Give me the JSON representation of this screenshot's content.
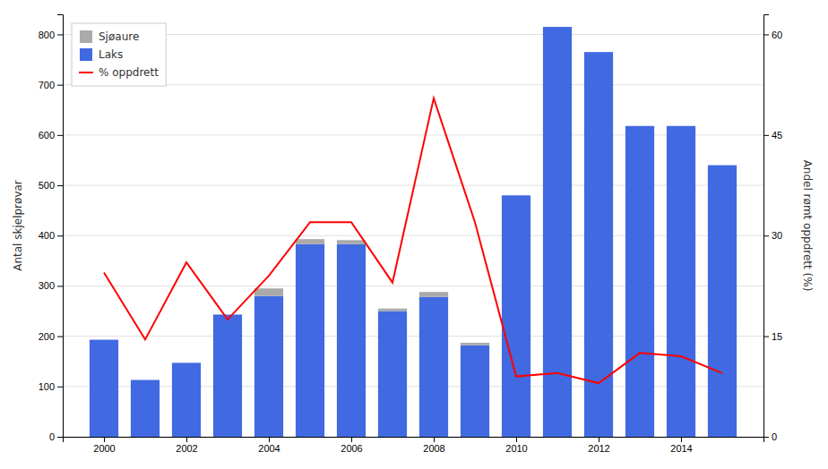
{
  "chart_data": {
    "type": "bar",
    "stacked": true,
    "x": [
      2000,
      2001,
      2002,
      2003,
      2004,
      2005,
      2006,
      2007,
      2008,
      2009,
      2010,
      2011,
      2012,
      2013,
      2014,
      2015
    ],
    "series": [
      {
        "name": "Laks",
        "color": "#4169E1",
        "values": [
          193,
          113,
          147,
          243,
          280,
          383,
          383,
          250,
          278,
          182,
          480,
          815,
          765,
          618,
          618,
          540
        ]
      },
      {
        "name": "Sjøaure",
        "color": "#AAAAAA",
        "values": [
          0,
          0,
          0,
          0,
          15,
          10,
          8,
          5,
          10,
          5,
          0,
          0,
          0,
          0,
          0,
          0
        ]
      },
      {
        "name": "% oppdrett",
        "type": "line",
        "axis": "y2",
        "color": "#FF0000",
        "values": [
          24.5,
          14.5,
          26.0,
          17.5,
          24.0,
          32.0,
          32.0,
          23.0,
          50.5,
          32.0,
          9.0,
          9.5,
          8.0,
          12.5,
          12.0,
          9.5
        ]
      }
    ],
    "ylabel": "Antal skjelprøvar",
    "y2label": "Andel rømt oppdrett (%)",
    "xlim": [
      1999.0,
      2016.0
    ],
    "xticks": [
      2000,
      2002,
      2004,
      2006,
      2008,
      2010,
      2012,
      2014
    ],
    "ylim": [
      0,
      840
    ],
    "yticks": [
      0,
      100,
      200,
      300,
      400,
      500,
      600,
      700,
      800
    ],
    "y2lim": [
      0,
      63
    ],
    "y2ticks": [
      0,
      15,
      30,
      45,
      60
    ],
    "grid": true,
    "legend": "upper left"
  }
}
